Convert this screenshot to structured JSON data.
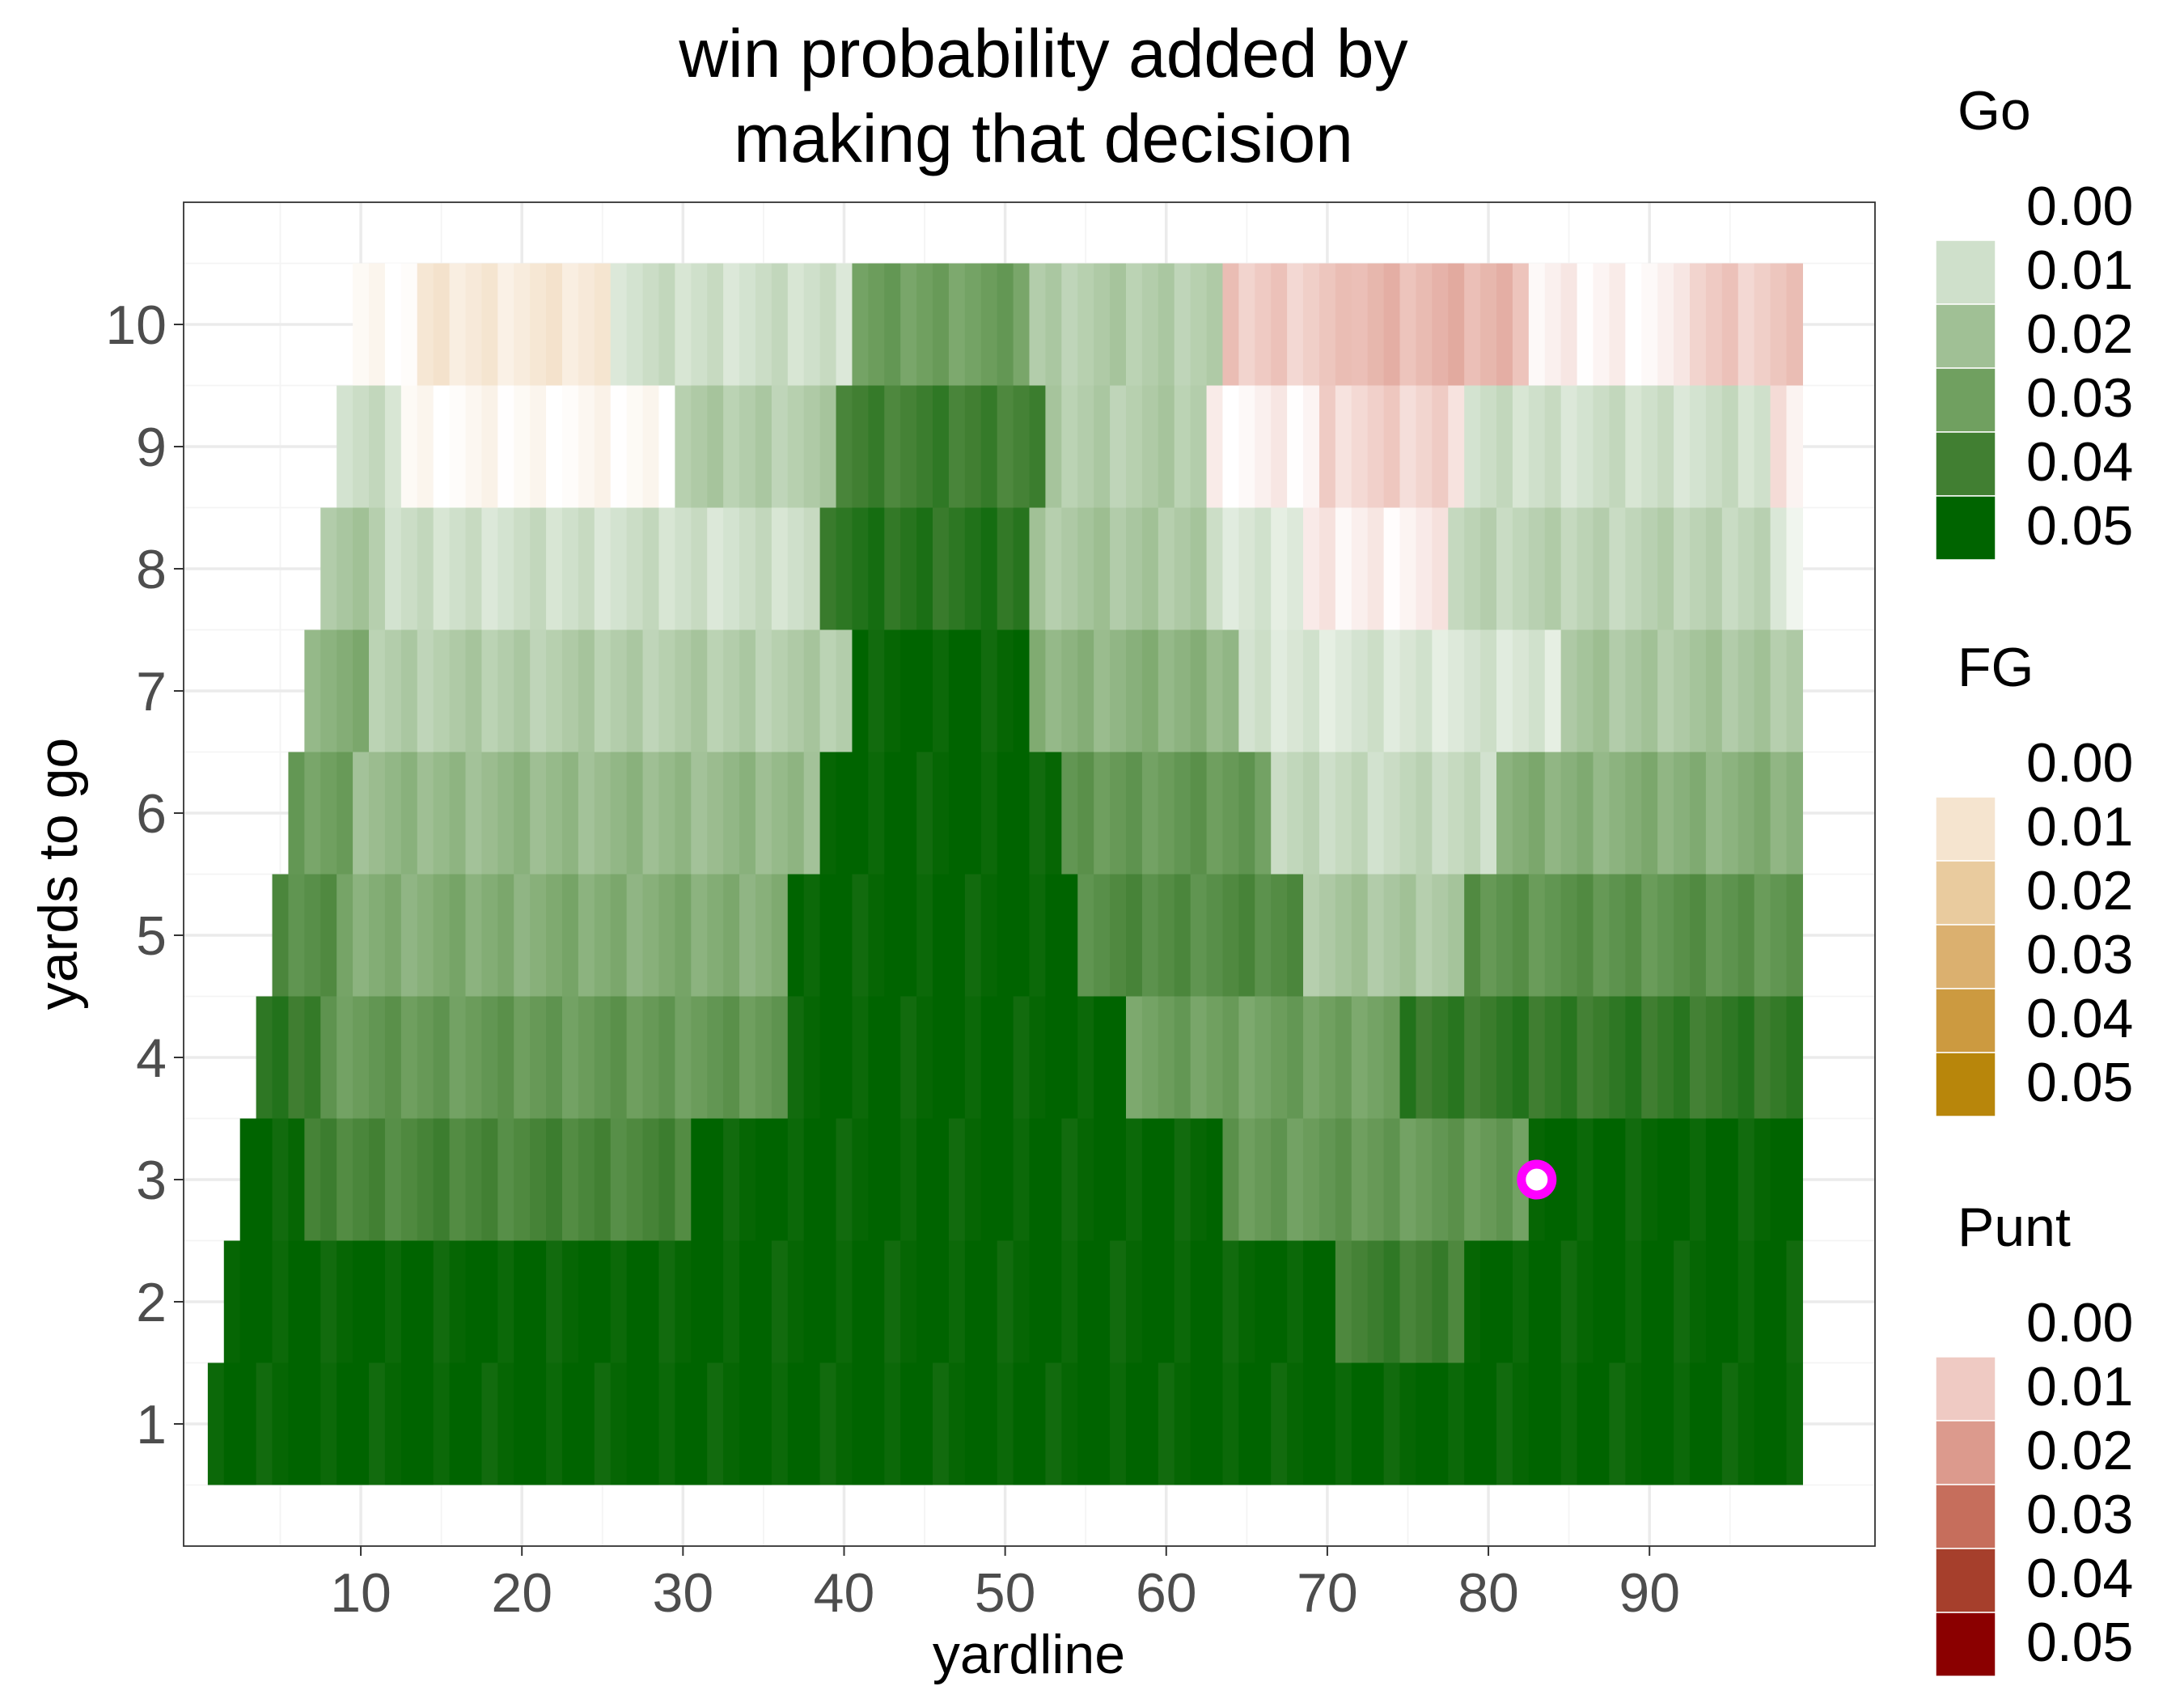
{
  "chart_data": {
    "type": "heatmap",
    "title": [
      "win probability added by",
      "making that decision"
    ],
    "xlabel": "yardline",
    "ylabel": "yards to go",
    "xlim": [
      -1,
      104
    ],
    "ylim": [
      0.0,
      11.0
    ],
    "x_ticks": [
      10,
      20,
      30,
      40,
      50,
      60,
      70,
      80,
      90
    ],
    "y_ticks": [
      1,
      2,
      3,
      4,
      5,
      6,
      7,
      8,
      9,
      10
    ],
    "grid": true,
    "legend_position": "right",
    "colors": {
      "Go": [
        "#ffffff",
        "#cfe0cb",
        "#a0c095",
        "#70a060",
        "#417f32",
        "#006400"
      ],
      "FG": [
        "#ffffff",
        "#f5e4cf",
        "#e9cb9e",
        "#dbb06f",
        "#cc9a40",
        "#b8860b"
      ],
      "Punt": [
        "#ffffff",
        "#efcac3",
        "#dc9a8d",
        "#c66e5c",
        "#a63f2c",
        "#8b0000"
      ]
    },
    "legends": [
      {
        "title": "Go",
        "labels": [
          "0.00",
          "0.01",
          "0.02",
          "0.03",
          "0.04",
          "0.05"
        ]
      },
      {
        "title": "FG",
        "labels": [
          "0.00",
          "0.01",
          "0.02",
          "0.03",
          "0.04",
          "0.05"
        ]
      },
      {
        "title": "Punt",
        "labels": [
          "0.00",
          "0.01",
          "0.02",
          "0.03",
          "0.04",
          "0.05"
        ]
      }
    ],
    "rows": [
      {
        "ytg": 1,
        "x_start": 1,
        "segments": [
          {
            "from": 1,
            "to": 99,
            "d": "Go",
            "v": 0.05
          }
        ]
      },
      {
        "ytg": 2,
        "x_start": 2,
        "segments": [
          {
            "from": 2,
            "to": 24,
            "d": "Go",
            "v": 0.05
          },
          {
            "from": 25,
            "to": 70,
            "d": "Go",
            "v": 0.05
          },
          {
            "from": 71,
            "to": 78,
            "d": "Go",
            "v": 0.04
          },
          {
            "from": 79,
            "to": 99,
            "d": "Go",
            "v": 0.05
          }
        ]
      },
      {
        "ytg": 3,
        "x_start": 3,
        "segments": [
          {
            "from": 3,
            "to": 6,
            "d": "Go",
            "v": 0.05
          },
          {
            "from": 7,
            "to": 30,
            "d": "Go",
            "v": 0.038
          },
          {
            "from": 31,
            "to": 63,
            "d": "Go",
            "v": 0.05
          },
          {
            "from": 64,
            "to": 82,
            "d": "Go",
            "v": 0.032
          },
          {
            "from": 83,
            "to": 99,
            "d": "Go",
            "v": 0.05
          }
        ]
      },
      {
        "ytg": 4,
        "x_start": 4,
        "segments": [
          {
            "from": 4,
            "to": 7,
            "d": "Go",
            "v": 0.042
          },
          {
            "from": 8,
            "to": 36,
            "d": "Go",
            "v": 0.032
          },
          {
            "from": 37,
            "to": 57,
            "d": "Go",
            "v": 0.05
          },
          {
            "from": 58,
            "to": 74,
            "d": "Go",
            "v": 0.03
          },
          {
            "from": 75,
            "to": 99,
            "d": "Go",
            "v": 0.042
          }
        ]
      },
      {
        "ytg": 5,
        "x_start": 5,
        "segments": [
          {
            "from": 5,
            "to": 8,
            "d": "Go",
            "v": 0.036
          },
          {
            "from": 9,
            "to": 36,
            "d": "Go",
            "v": 0.026
          },
          {
            "from": 37,
            "to": 54,
            "d": "Go",
            "v": 0.05
          },
          {
            "from": 55,
            "to": 68,
            "d": "Go",
            "v": 0.036
          },
          {
            "from": 69,
            "to": 78,
            "d": "Go",
            "v": 0.018
          },
          {
            "from": 79,
            "to": 99,
            "d": "Go",
            "v": 0.034
          }
        ]
      },
      {
        "ytg": 6,
        "x_start": 6,
        "segments": [
          {
            "from": 6,
            "to": 9,
            "d": "Go",
            "v": 0.03
          },
          {
            "from": 10,
            "to": 38,
            "d": "Go",
            "v": 0.022
          },
          {
            "from": 39,
            "to": 53,
            "d": "Go",
            "v": 0.05
          },
          {
            "from": 54,
            "to": 66,
            "d": "Go",
            "v": 0.032
          },
          {
            "from": 67,
            "to": 80,
            "d": "Go",
            "v": 0.012
          },
          {
            "from": 81,
            "to": 99,
            "d": "Go",
            "v": 0.025
          }
        ]
      },
      {
        "ytg": 7,
        "x_start": 7,
        "segments": [
          {
            "from": 7,
            "to": 10,
            "d": "Go",
            "v": 0.025
          },
          {
            "from": 11,
            "to": 40,
            "d": "Go",
            "v": 0.016
          },
          {
            "from": 41,
            "to": 51,
            "d": "Go",
            "v": 0.05
          },
          {
            "from": 52,
            "to": 64,
            "d": "Go",
            "v": 0.024
          },
          {
            "from": 65,
            "to": 84,
            "d": "Go",
            "v": 0.008
          },
          {
            "from": 85,
            "to": 99,
            "d": "Go",
            "v": 0.018
          }
        ]
      },
      {
        "ytg": 8,
        "x_start": 8,
        "segments": [
          {
            "from": 8,
            "to": 11,
            "d": "Go",
            "v": 0.018
          },
          {
            "from": 12,
            "to": 38,
            "d": "Go",
            "v": 0.01
          },
          {
            "from": 39,
            "to": 51,
            "d": "Go",
            "v": 0.044
          },
          {
            "from": 52,
            "to": 62,
            "d": "Go",
            "v": 0.018
          },
          {
            "from": 63,
            "to": 68,
            "d": "Go",
            "v": 0.008
          },
          {
            "from": 69,
            "to": 77,
            "d": "Punt",
            "v": 0.003
          },
          {
            "from": 78,
            "to": 97,
            "d": "Go",
            "v": 0.014
          },
          {
            "from": 98,
            "to": 99,
            "d": "Go",
            "v": 0.005
          }
        ]
      },
      {
        "ytg": 9,
        "x_start": 9,
        "segments": [
          {
            "from": 9,
            "to": 12,
            "d": "Go",
            "v": 0.01
          },
          {
            "from": 13,
            "to": 29,
            "d": "FG",
            "v": 0.002
          },
          {
            "from": 30,
            "to": 39,
            "d": "Go",
            "v": 0.016
          },
          {
            "from": 40,
            "to": 52,
            "d": "Go",
            "v": 0.04
          },
          {
            "from": 53,
            "to": 62,
            "d": "Go",
            "v": 0.016
          },
          {
            "from": 63,
            "to": 69,
            "d": "Punt",
            "v": 0.002
          },
          {
            "from": 70,
            "to": 78,
            "d": "Punt",
            "v": 0.008
          },
          {
            "from": 79,
            "to": 97,
            "d": "Go",
            "v": 0.01
          },
          {
            "from": 98,
            "to": 99,
            "d": "Punt",
            "v": 0.005
          }
        ]
      },
      {
        "ytg": 10,
        "x_start": 10,
        "segments": [
          {
            "from": 10,
            "to": 13,
            "d": "FG",
            "v": 0.002
          },
          {
            "from": 14,
            "to": 25,
            "d": "FG",
            "v": 0.008
          },
          {
            "from": 26,
            "to": 40,
            "d": "Go",
            "v": 0.01
          },
          {
            "from": 41,
            "to": 51,
            "d": "Go",
            "v": 0.03
          },
          {
            "from": 52,
            "to": 63,
            "d": "Go",
            "v": 0.016
          },
          {
            "from": 64,
            "to": 71,
            "d": "Punt",
            "v": 0.01
          },
          {
            "from": 72,
            "to": 82,
            "d": "Punt",
            "v": 0.014
          },
          {
            "from": 83,
            "to": 92,
            "d": "Punt",
            "v": 0.002
          },
          {
            "from": 93,
            "to": 99,
            "d": "Punt",
            "v": 0.01
          }
        ]
      }
    ],
    "highlight_point": {
      "x": 83,
      "y": 3,
      "color": "#ff00ff"
    }
  }
}
